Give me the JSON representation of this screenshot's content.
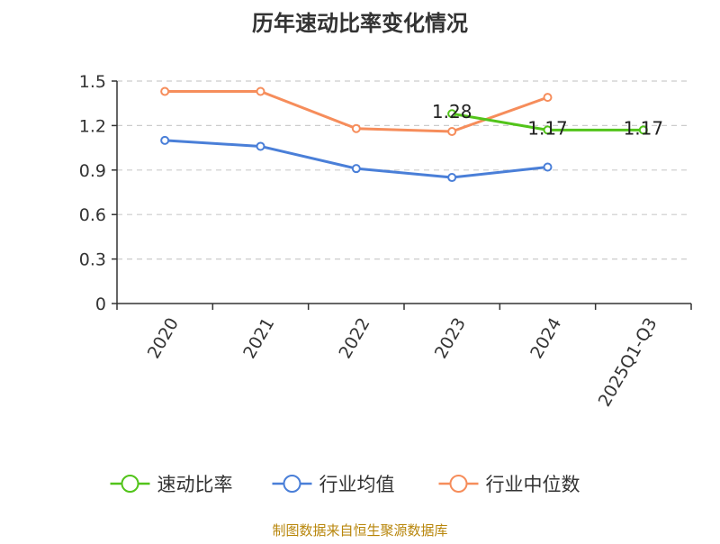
{
  "chart_data": {
    "type": "line",
    "title": "历年速动比率变化情况",
    "categories": [
      "2020",
      "2021",
      "2022",
      "2023",
      "2024",
      "2025Q1-Q3"
    ],
    "ylim": [
      0,
      1.5
    ],
    "yticks": [
      "0",
      "0.3",
      "0.6",
      "0.9",
      "1.2",
      "1.5"
    ],
    "grid": true,
    "legend_position": "bottom",
    "series": [
      {
        "name": "速动比率",
        "color": "#52c41a",
        "values": [
          null,
          null,
          null,
          1.28,
          1.17,
          1.17
        ],
        "labels": [
          null,
          null,
          null,
          "1.28",
          "1.17",
          "1.17"
        ]
      },
      {
        "name": "行业均值",
        "color": "#4a7fd8",
        "values": [
          1.1,
          1.06,
          0.91,
          0.85,
          0.92,
          null
        ]
      },
      {
        "name": "行业中位数",
        "color": "#f68d5b",
        "values": [
          1.43,
          1.43,
          1.18,
          1.16,
          1.39,
          null
        ]
      }
    ],
    "source": "制图数据来自恒生聚源数据库"
  }
}
